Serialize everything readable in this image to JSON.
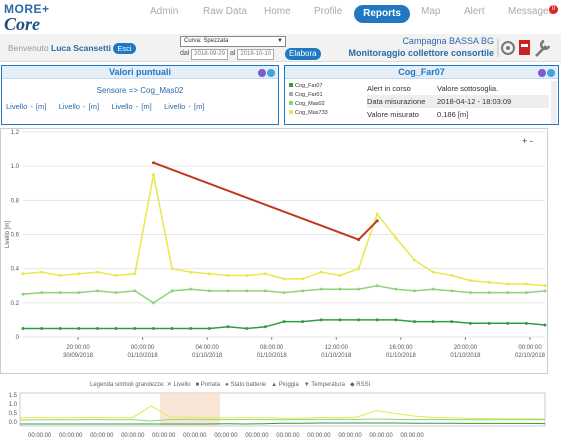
{
  "brand": {
    "line1": "MORE+",
    "line2": "Core"
  },
  "nav": {
    "admin": "Admin",
    "raw": "Raw Data",
    "home": "Home",
    "profile": "Profile",
    "reports": "Reports",
    "map": "Map",
    "alert": "Alert",
    "messages": "Messages",
    "badge": "0"
  },
  "user": {
    "welcome": "Benvenuto",
    "name": "Luca Scansetti",
    "logout": "Esci"
  },
  "filter": {
    "curve": "Curva: Spezzata",
    "dal": "dal",
    "date_from": "2018-09-29",
    "al": "al",
    "date_to": "2018-10-10",
    "run": "Elabora"
  },
  "site": {
    "campaign": "Campagna BASSA BG",
    "title": "Monitoraggio collettore consortile"
  },
  "left_panel": {
    "title": "Valori puntuali",
    "sensor": "Sensore => Cog_Mas02",
    "levels": [
      "Livello - [m]",
      "Livello - [m]",
      "Livello - [m]",
      "Livello - [m]"
    ]
  },
  "right_panel": {
    "title": "Cog_Far07",
    "sensors": [
      "Cog_Far07",
      "Cog_Far01",
      "Cog_Mas02",
      "Cog_Mas733"
    ],
    "sensor_colors": [
      "#2e9e3e",
      "#aaaaaa",
      "#7fd37f",
      "#e8e84a"
    ],
    "rows": [
      {
        "k": "Alert in corso",
        "v": "Valore sottosoglia."
      },
      {
        "k": "Data misurazione",
        "v": "2018-04-12 - 18:03:09"
      },
      {
        "k": "Valore misurato",
        "v": "0.186 [m]"
      }
    ]
  },
  "chart_data": {
    "type": "line",
    "ylabel": "Livello [m]",
    "ylim": [
      0,
      1.2
    ],
    "yticks": [
      "0",
      "0.2",
      "0.4",
      "0.6",
      "0.8",
      "1.0",
      "1.2"
    ],
    "xticks": [
      [
        "20:00:00",
        "30/09/2018"
      ],
      [
        "00:00:00",
        "01/10/2018"
      ],
      [
        "04:00:00",
        "01/10/2018"
      ],
      [
        "08:00:00",
        "01/10/2018"
      ],
      [
        "12:00:00",
        "01/10/2018"
      ],
      [
        "16:00:00",
        "01/10/2018"
      ],
      [
        "20:00:00",
        "01/10/2018"
      ],
      [
        "00:00:00",
        "02/10/2018"
      ]
    ],
    "series": [
      {
        "color": "#e8e84a",
        "values": [
          0.37,
          0.38,
          0.36,
          0.37,
          0.38,
          0.36,
          0.37,
          0.95,
          0.4,
          0.38,
          0.37,
          0.36,
          0.36,
          0.37,
          0.34,
          0.34,
          0.38,
          0.36,
          0.4,
          0.72,
          0.58,
          0.45,
          0.38,
          0.36,
          0.33,
          0.32,
          0.31,
          0.31,
          0.3
        ]
      },
      {
        "color": "#8fd47a",
        "values": [
          0.25,
          0.26,
          0.26,
          0.26,
          0.27,
          0.26,
          0.27,
          0.2,
          0.27,
          0.28,
          0.27,
          0.27,
          0.27,
          0.27,
          0.26,
          0.27,
          0.28,
          0.28,
          0.28,
          0.3,
          0.28,
          0.27,
          0.28,
          0.27,
          0.26,
          0.26,
          0.26,
          0.26,
          0.27
        ]
      },
      {
        "color": "#2e9e3e",
        "values": [
          0.05,
          0.05,
          0.05,
          0.05,
          0.05,
          0.05,
          0.05,
          0.05,
          0.05,
          0.05,
          0.05,
          0.06,
          0.05,
          0.06,
          0.09,
          0.09,
          0.1,
          0.1,
          0.1,
          0.1,
          0.1,
          0.09,
          0.09,
          0.09,
          0.08,
          0.08,
          0.08,
          0.08,
          0.07
        ]
      },
      {
        "color": "#c23a1e",
        "values": [
          null,
          null,
          null,
          null,
          null,
          null,
          null,
          1.02,
          null,
          null,
          null,
          null,
          null,
          null,
          null,
          null,
          null,
          null,
          0.57,
          0.68,
          null,
          null,
          null,
          null,
          null,
          null,
          null,
          null,
          null
        ]
      }
    ]
  },
  "legend": {
    "title": "Legenda simboli grandezze:",
    "items": [
      "Livello",
      "Portata",
      "Stato batterie",
      "Pioggia",
      "Temperatura",
      "RSSI"
    ]
  },
  "navigator": {
    "yticks": [
      "1.5",
      "1.0",
      "0.5",
      "0.0"
    ],
    "tick": "00:00:00"
  },
  "colors": {
    "accent": "#1f78c1"
  }
}
